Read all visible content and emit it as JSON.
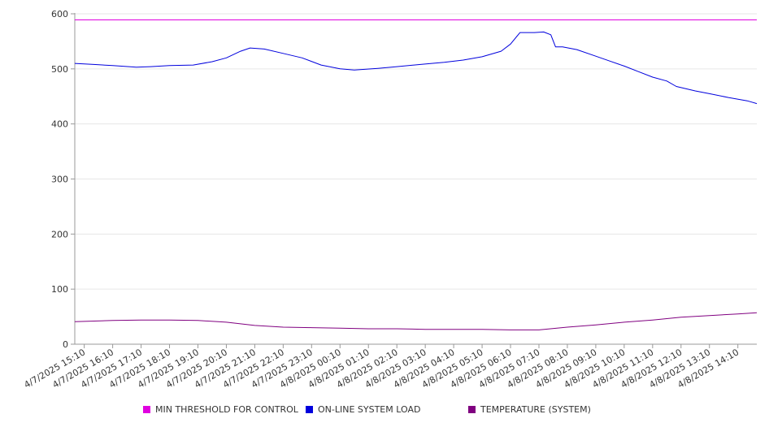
{
  "chart_data": {
    "type": "line",
    "ylim": [
      0,
      600
    ],
    "y_ticks": [
      0,
      100,
      200,
      300,
      400,
      500,
      600
    ],
    "grid": true,
    "legend_position": "bottom",
    "x_range": [
      "4/7/2025 14:50",
      "4/8/2025 14:50"
    ],
    "categories": [
      "4/7/2025 15:10",
      "4/7/2025 16:10",
      "4/7/2025 17:10",
      "4/7/2025 18:10",
      "4/7/2025 19:10",
      "4/7/2025 20:10",
      "4/7/2025 21:10",
      "4/7/2025 22:10",
      "4/7/2025 23:10",
      "4/8/2025 00:10",
      "4/8/2025 01:10",
      "4/8/2025 02:10",
      "4/8/2025 03:10",
      "4/8/2025 04:10",
      "4/8/2025 05:10",
      "4/8/2025 06:10",
      "4/8/2025 07:10",
      "4/8/2025 08:10",
      "4/8/2025 09:10",
      "4/8/2025 10:10",
      "4/8/2025 11:10",
      "4/8/2025 12:10",
      "4/8/2025 13:10",
      "4/8/2025 14:10"
    ],
    "series": [
      {
        "name": "MIN THRESHOLD FOR CONTROL",
        "color": "#e000e0",
        "x": [
          "4/7/2025 14:50",
          "4/8/2025 14:50"
        ],
        "values": [
          589,
          589
        ]
      },
      {
        "name": "ON-LINE SYSTEM LOAD",
        "color": "#0000dd",
        "x": [
          "4/7/2025 14:50",
          "4/7/2025 15:30",
          "4/7/2025 16:10",
          "4/7/2025 17:00",
          "4/7/2025 17:30",
          "4/7/2025 18:10",
          "4/7/2025 19:00",
          "4/7/2025 19:40",
          "4/7/2025 20:10",
          "4/7/2025 20:40",
          "4/7/2025 21:00",
          "4/7/2025 21:30",
          "4/7/2025 22:10",
          "4/7/2025 22:50",
          "4/7/2025 23:30",
          "4/8/2025 00:10",
          "4/8/2025 00:40",
          "4/8/2025 01:30",
          "4/8/2025 02:10",
          "4/8/2025 03:00",
          "4/8/2025 03:50",
          "4/8/2025 04:30",
          "4/8/2025 05:10",
          "4/8/2025 05:50",
          "4/8/2025 06:10",
          "4/8/2025 06:30",
          "4/8/2025 07:00",
          "4/8/2025 07:20",
          "4/8/2025 07:35",
          "4/8/2025 07:45",
          "4/8/2025 08:00",
          "4/8/2025 08:30",
          "4/8/2025 09:10",
          "4/8/2025 09:40",
          "4/8/2025 10:10",
          "4/8/2025 10:40",
          "4/8/2025 11:10",
          "4/8/2025 11:40",
          "4/8/2025 12:00",
          "4/8/2025 12:40",
          "4/8/2025 13:10",
          "4/8/2025 13:50",
          "4/8/2025 14:30",
          "4/8/2025 14:50"
        ],
        "values": [
          510,
          508,
          506,
          503,
          504,
          506,
          507,
          513,
          520,
          532,
          538,
          536,
          528,
          520,
          507,
          500,
          498,
          501,
          504,
          508,
          512,
          516,
          522,
          532,
          545,
          566,
          566,
          567,
          562,
          540,
          540,
          535,
          523,
          514,
          505,
          495,
          485,
          478,
          468,
          460,
          455,
          448,
          442,
          437
        ]
      },
      {
        "name": "TEMPERATURE (SYSTEM)",
        "color": "#800080",
        "x": [
          "4/7/2025 14:50",
          "4/7/2025 16:10",
          "4/7/2025 17:10",
          "4/7/2025 18:10",
          "4/7/2025 19:10",
          "4/7/2025 20:10",
          "4/7/2025 21:10",
          "4/7/2025 22:10",
          "4/7/2025 23:10",
          "4/8/2025 00:10",
          "4/8/2025 01:10",
          "4/8/2025 02:10",
          "4/8/2025 03:10",
          "4/8/2025 04:10",
          "4/8/2025 05:10",
          "4/8/2025 06:10",
          "4/8/2025 07:10",
          "4/8/2025 08:10",
          "4/8/2025 09:10",
          "4/8/2025 10:10",
          "4/8/2025 11:10",
          "4/8/2025 12:10",
          "4/8/2025 13:10",
          "4/8/2025 14:10",
          "4/8/2025 14:50"
        ],
        "values": [
          41,
          43,
          44,
          44,
          43,
          40,
          34,
          31,
          30,
          29,
          28,
          28,
          27,
          27,
          27,
          26,
          26,
          31,
          35,
          40,
          44,
          49,
          52,
          55,
          57
        ]
      }
    ]
  }
}
